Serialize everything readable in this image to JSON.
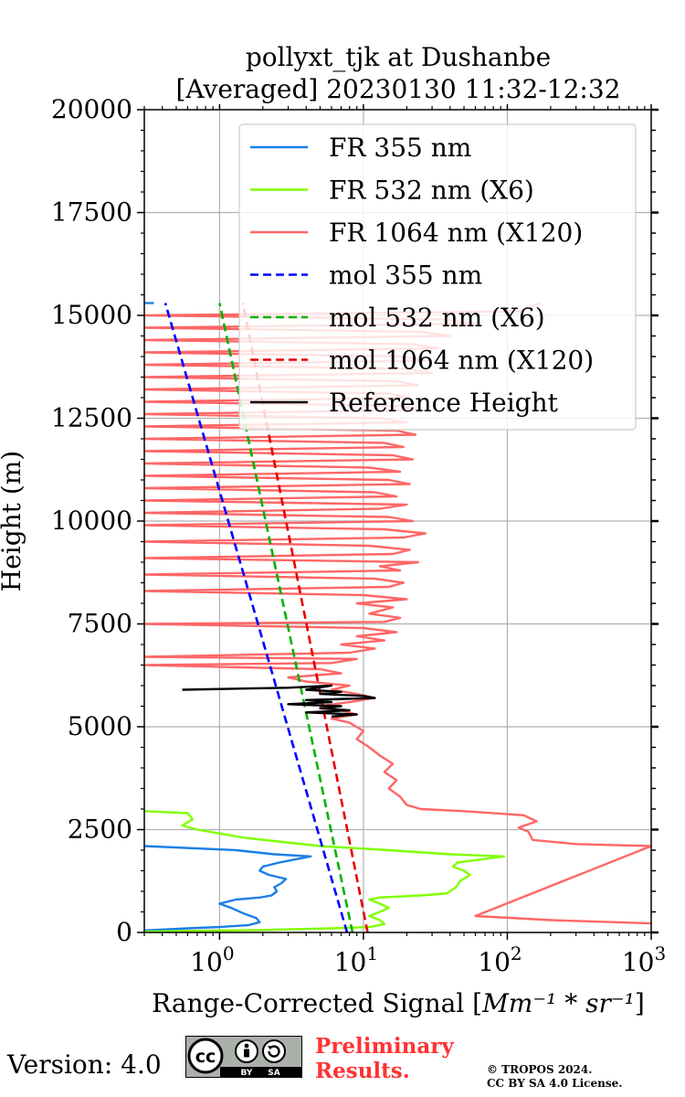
{
  "chart_data": {
    "type": "line",
    "title": "pollyxt_tjk at Dushanbe",
    "subtitle": "[Averaged] 20230130 11:32-12:32",
    "xlabel_text": "Range-Corrected Signal [",
    "xlabel_unit": "Mm⁻¹ * sr⁻¹",
    "xlabel_close": "]",
    "ylabel": "Height (m)",
    "x_scale": "log",
    "xlim": [
      0.3,
      1000
    ],
    "ylim": [
      0,
      20000
    ],
    "x_ticks": [
      {
        "value": 1,
        "label": "10",
        "exp": "0"
      },
      {
        "value": 10,
        "label": "10",
        "exp": "1"
      },
      {
        "value": 100,
        "label": "10",
        "exp": "2"
      },
      {
        "value": 1000,
        "label": "10",
        "exp": "3"
      }
    ],
    "y_ticks": [
      "0",
      "2500",
      "5000",
      "7500",
      "10000",
      "12500",
      "15000",
      "17500",
      "20000"
    ],
    "grid": true,
    "legend_position": "top-right",
    "legend": [
      {
        "label": "FR 355 nm",
        "color": "#1a7fe6",
        "style": "solid"
      },
      {
        "label": "FR 532 nm (X6)",
        "color": "#80ff00",
        "style": "solid"
      },
      {
        "label": "FR 1064 nm (X120)",
        "color": "#ff6666",
        "style": "solid"
      },
      {
        "label": "mol 355 nm",
        "color": "#0000ff",
        "style": "dashed"
      },
      {
        "label": "mol 532 nm (X6)",
        "color": "#00b300",
        "style": "dashed"
      },
      {
        "label": "mol 1064 nm (X120)",
        "color": "#e60000",
        "style": "dashed"
      },
      {
        "label": "Reference Height",
        "color": "#000000",
        "style": "solid"
      }
    ],
    "series": [
      {
        "key": "fr355",
        "color": "#1a7fe6",
        "style": "solid",
        "points": [
          [
            0.3,
            50
          ],
          [
            0.6,
            100
          ],
          [
            1.0,
            130
          ],
          [
            1.6,
            180
          ],
          [
            1.9,
            250
          ],
          [
            1.8,
            350
          ],
          [
            1.5,
            450
          ],
          [
            1.2,
            600
          ],
          [
            1.0,
            700
          ],
          [
            1.3,
            800
          ],
          [
            1.9,
            850
          ],
          [
            2.3,
            900
          ],
          [
            2.5,
            1000
          ],
          [
            2.4,
            1100
          ],
          [
            2.7,
            1200
          ],
          [
            2.9,
            1300
          ],
          [
            2.2,
            1400
          ],
          [
            1.9,
            1500
          ],
          [
            2.0,
            1600
          ],
          [
            2.6,
            1700
          ],
          [
            4.3,
            1850
          ],
          [
            2.4,
            1900
          ],
          [
            1.3,
            2000
          ],
          [
            0.3,
            2100
          ]
        ]
      },
      {
        "key": "fr532",
        "color": "#80ff00",
        "style": "solid",
        "points": [
          [
            0.3,
            20
          ],
          [
            2,
            60
          ],
          [
            6,
            100
          ],
          [
            11,
            130
          ],
          [
            14,
            200
          ],
          [
            13,
            300
          ],
          [
            11,
            400
          ],
          [
            13,
            500
          ],
          [
            15,
            600
          ],
          [
            13,
            700
          ],
          [
            11,
            800
          ],
          [
            13,
            850
          ],
          [
            25,
            900
          ],
          [
            38,
            950
          ],
          [
            44,
            1100
          ],
          [
            47,
            1250
          ],
          [
            55,
            1400
          ],
          [
            50,
            1500
          ],
          [
            42,
            1600
          ],
          [
            45,
            1700
          ],
          [
            95,
            1850
          ],
          [
            40,
            1900
          ],
          [
            15,
            2000
          ],
          [
            5,
            2100
          ],
          [
            1.5,
            2300
          ],
          [
            0.7,
            2500
          ],
          [
            0.55,
            2600
          ],
          [
            0.65,
            2750
          ],
          [
            0.6,
            2900
          ],
          [
            0.3,
            2950
          ]
        ]
      },
      {
        "key": "fr1064",
        "color": "#ff6666",
        "style": "solid",
        "points": [
          [
            1000,
            220
          ],
          [
            200,
            300
          ],
          [
            60,
            400
          ],
          [
            1000,
            2100
          ],
          [
            300,
            2150
          ],
          [
            150,
            2250
          ],
          [
            140,
            2450
          ],
          [
            120,
            2550
          ],
          [
            160,
            2700
          ],
          [
            130,
            2850
          ],
          [
            50,
            2950
          ],
          [
            25,
            3000
          ],
          [
            20,
            3100
          ],
          [
            18,
            3300
          ],
          [
            15,
            3500
          ],
          [
            17,
            3700
          ],
          [
            14,
            3900
          ],
          [
            16,
            4100
          ],
          [
            13,
            4300
          ],
          [
            11,
            4500
          ],
          [
            9,
            4700
          ],
          [
            10,
            4900
          ],
          [
            8,
            5100
          ],
          [
            6,
            5200
          ],
          [
            9,
            5300
          ],
          [
            7,
            5400
          ],
          [
            5,
            5500
          ],
          [
            8,
            5600
          ],
          [
            12,
            5700
          ],
          [
            9,
            5800
          ],
          [
            6,
            5900
          ],
          [
            8,
            6000
          ],
          [
            4,
            6100
          ],
          [
            3,
            6200
          ],
          [
            7,
            6300
          ],
          [
            5,
            6400
          ],
          [
            0.3,
            6500
          ],
          [
            6,
            6550
          ],
          [
            9,
            6650
          ],
          [
            0.3,
            6700
          ],
          [
            8,
            6800
          ],
          [
            12,
            6900
          ],
          [
            7,
            7000
          ],
          [
            14,
            7100
          ],
          [
            9,
            7200
          ],
          [
            17,
            7300
          ],
          [
            10,
            7400
          ],
          [
            0.3,
            7500
          ],
          [
            14,
            7550
          ],
          [
            18,
            7650
          ],
          [
            11,
            7750
          ],
          [
            16,
            7900
          ],
          [
            9,
            8000
          ],
          [
            20,
            8100
          ],
          [
            10,
            8200
          ],
          [
            0.3,
            8300
          ],
          [
            15,
            8400
          ],
          [
            19,
            8500
          ],
          [
            12,
            8600
          ],
          [
            0.3,
            8700
          ],
          [
            18,
            8800
          ],
          [
            13,
            8900
          ],
          [
            24,
            9000
          ],
          [
            0.3,
            9100
          ],
          [
            16,
            9200
          ],
          [
            21,
            9300
          ],
          [
            11,
            9400
          ],
          [
            0.3,
            9500
          ],
          [
            19,
            9600
          ],
          [
            27,
            9700
          ],
          [
            14,
            9800
          ],
          [
            0.3,
            9900
          ],
          [
            22,
            10000
          ],
          [
            15,
            10100
          ],
          [
            0.3,
            10200
          ],
          [
            13,
            10300
          ],
          [
            20,
            10400
          ],
          [
            0.3,
            10500
          ],
          [
            17,
            10600
          ],
          [
            12,
            10700
          ],
          [
            0.3,
            10800
          ],
          [
            21,
            10900
          ],
          [
            15,
            11000
          ],
          [
            0.3,
            11100
          ],
          [
            18,
            11200
          ],
          [
            11,
            11300
          ],
          [
            0.3,
            11400
          ],
          [
            22,
            11500
          ],
          [
            16,
            11600
          ],
          [
            0.3,
            11700
          ],
          [
            19,
            11800
          ],
          [
            14,
            11900
          ],
          [
            0.3,
            12000
          ],
          [
            23,
            12100
          ],
          [
            17,
            12200
          ],
          [
            0.3,
            12300
          ],
          [
            20,
            12400
          ],
          [
            13,
            12500
          ],
          [
            0.3,
            12600
          ],
          [
            25,
            12700
          ],
          [
            18,
            12800
          ],
          [
            0.3,
            12900
          ],
          [
            21,
            13000
          ],
          [
            15,
            13100
          ],
          [
            0.3,
            13200
          ],
          [
            24,
            13300
          ],
          [
            17,
            13400
          ],
          [
            0.3,
            13500
          ],
          [
            30,
            13600
          ],
          [
            20,
            13700
          ],
          [
            0.3,
            13800
          ],
          [
            27,
            13900
          ],
          [
            19,
            14000
          ],
          [
            0.3,
            14100
          ],
          [
            33,
            14200
          ],
          [
            22,
            14300
          ],
          [
            0.3,
            14400
          ],
          [
            40,
            14500
          ],
          [
            25,
            14600
          ],
          [
            0.3,
            14700
          ],
          [
            60,
            14800
          ],
          [
            35,
            14900
          ],
          [
            0.3,
            15000
          ],
          [
            120,
            15100
          ],
          [
            170,
            15300
          ]
        ]
      },
      {
        "key": "fr355_top",
        "color": "#1a7fe6",
        "style": "solid",
        "points": [
          [
            0.3,
            15300
          ],
          [
            0.35,
            15300
          ]
        ]
      },
      {
        "key": "mol355",
        "color": "#0000ff",
        "style": "dashed",
        "points": [
          [
            7.7,
            0
          ],
          [
            0.42,
            15300
          ]
        ]
      },
      {
        "key": "mol532",
        "color": "#00b300",
        "style": "dashed",
        "points": [
          [
            8.4,
            0
          ],
          [
            1.0,
            15300
          ]
        ]
      },
      {
        "key": "mol1064",
        "color": "#e60000",
        "style": "dashed",
        "points": [
          [
            10.7,
            0
          ],
          [
            1.45,
            15300
          ]
        ]
      },
      {
        "key": "ref",
        "color": "#000000",
        "style": "solid",
        "points": [
          [
            0.55,
            5900
          ],
          [
            3,
            5950
          ],
          [
            6,
            6000
          ],
          [
            4,
            5900
          ],
          [
            7,
            5850
          ],
          [
            5,
            5800
          ],
          [
            10,
            5750
          ],
          [
            12,
            5700
          ],
          [
            4,
            5650
          ],
          [
            6,
            5600
          ],
          [
            3,
            5550
          ],
          [
            7,
            5500
          ],
          [
            5,
            5450
          ],
          [
            8,
            5400
          ],
          [
            4,
            5350
          ],
          [
            9,
            5300
          ],
          [
            6,
            5250
          ]
        ]
      }
    ]
  },
  "footer": {
    "version": "Version: 4.0",
    "cc_glyph": "cc",
    "cc_by": "BY",
    "cc_sa": "SA",
    "preliminary_line1": "Preliminary",
    "preliminary_line2": "Results.",
    "copyright_line1": "© TROPOS 2024.",
    "copyright_line2": "CC BY SA 4.0 License."
  }
}
